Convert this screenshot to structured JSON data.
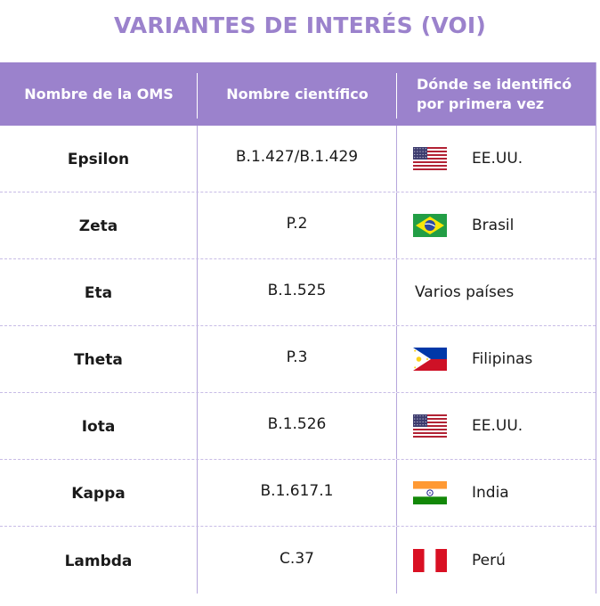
{
  "title": "VARIANTES DE INTERÉS (VOI)",
  "headers": {
    "who_name": "Nombre de la OMS",
    "scientific_name": "Nombre científico",
    "first_identified_line1": "Dónde se identificó",
    "first_identified_line2": "por primera vez"
  },
  "rows": [
    {
      "who_name": "Epsilon",
      "scientific_name": "B.1.427/B.1.429",
      "country": "EE.UU.",
      "flag": "usa-flag-icon"
    },
    {
      "who_name": "Zeta",
      "scientific_name": "P.2",
      "country": "Brasil",
      "flag": "brazil-flag-icon"
    },
    {
      "who_name": "Eta",
      "scientific_name": "B.1.525",
      "country": "Varios países",
      "flag": ""
    },
    {
      "who_name": "Theta",
      "scientific_name": "P.3",
      "country": "Filipinas",
      "flag": "philippines-flag-icon"
    },
    {
      "who_name": "Iota",
      "scientific_name": "B.1.526",
      "country": "EE.UU.",
      "flag": "usa-flag-icon"
    },
    {
      "who_name": "Kappa",
      "scientific_name": "B.1.617.1",
      "country": "India",
      "flag": "india-flag-icon"
    },
    {
      "who_name": "Lambda",
      "scientific_name": "C.37",
      "country": "Perú",
      "flag": "peru-flag-icon"
    }
  ],
  "colors": {
    "accent": "#9b82cc",
    "header_text": "#ffffff",
    "body_text": "#1a1a1a"
  }
}
